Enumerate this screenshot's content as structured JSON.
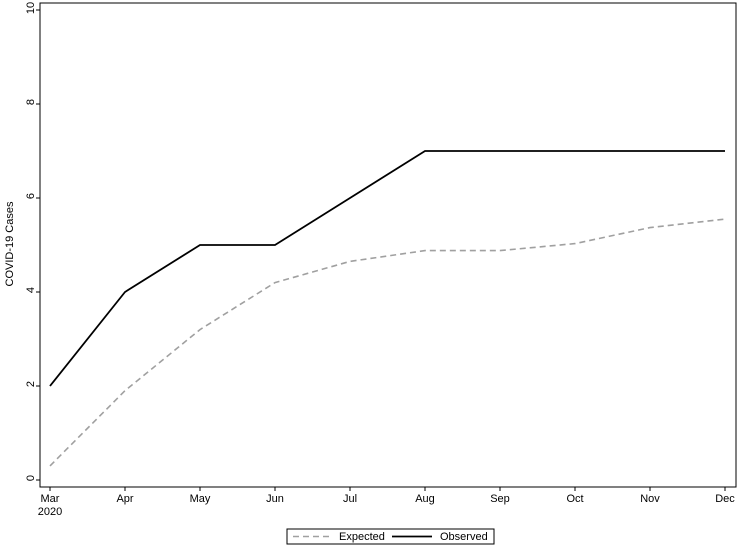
{
  "chart_data": {
    "type": "line",
    "title": "",
    "xlabel": "",
    "ylabel": "COVID-19 Cases",
    "ylim": [
      0,
      10
    ],
    "yticks": [
      0,
      2,
      4,
      6,
      8,
      10
    ],
    "categories": [
      "Mar",
      "Apr",
      "May",
      "Jun",
      "Jul",
      "Aug",
      "Sep",
      "Oct",
      "Nov",
      "Dec"
    ],
    "first_tick_sublabel": "2020",
    "grid": false,
    "legend_position": "bottom",
    "series": [
      {
        "name": "Expected",
        "style": "dashed",
        "color": "#a0a0a0",
        "values": [
          0.3,
          1.9,
          3.2,
          4.2,
          4.65,
          4.88,
          4.88,
          5.03,
          5.37,
          5.55
        ]
      },
      {
        "name": "Observed",
        "style": "solid",
        "color": "#000000",
        "values": [
          2,
          4,
          5,
          5,
          6,
          7,
          7,
          7,
          7,
          7
        ]
      }
    ]
  }
}
